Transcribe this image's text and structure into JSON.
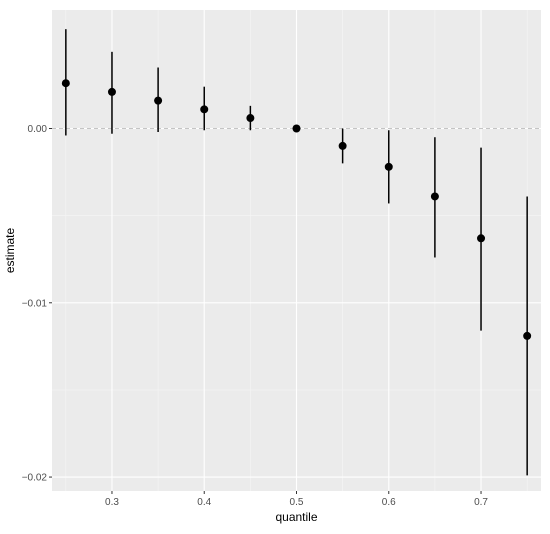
{
  "chart_data": {
    "type": "scatter",
    "subtype": "pointrange",
    "title": "",
    "xlabel": "quantile",
    "ylabel": "estimate",
    "xlim": [
      0.235,
      0.765
    ],
    "ylim": [
      -0.0208,
      0.0068
    ],
    "x_ticks": [
      0.3,
      0.4,
      0.5,
      0.6,
      0.7
    ],
    "x_tick_labels": [
      "0.3",
      "0.4",
      "0.5",
      "0.6",
      "0.7"
    ],
    "y_ticks": [
      -0.02,
      -0.01,
      0.0
    ],
    "y_tick_labels": [
      "−0.02",
      "−0.01",
      "0.00"
    ],
    "grid": true,
    "reference_line": {
      "y": 0,
      "style": "dashed"
    },
    "points": [
      {
        "x": 0.25,
        "y": 0.0026,
        "lower": -0.0004,
        "upper": 0.0057
      },
      {
        "x": 0.3,
        "y": 0.0021,
        "lower": -0.0003,
        "upper": 0.0044
      },
      {
        "x": 0.35,
        "y": 0.0016,
        "lower": -0.0002,
        "upper": 0.0035
      },
      {
        "x": 0.4,
        "y": 0.0011,
        "lower": -0.0001,
        "upper": 0.0024
      },
      {
        "x": 0.45,
        "y": 0.0006,
        "lower": -0.0001,
        "upper": 0.0013
      },
      {
        "x": 0.5,
        "y": 0.0,
        "lower": 0.0,
        "upper": 0.0
      },
      {
        "x": 0.55,
        "y": -0.001,
        "lower": -0.002,
        "upper": 0.0
      },
      {
        "x": 0.6,
        "y": -0.0022,
        "lower": -0.0043,
        "upper": -0.0001
      },
      {
        "x": 0.65,
        "y": -0.0039,
        "lower": -0.0074,
        "upper": -0.0005
      },
      {
        "x": 0.7,
        "y": -0.0063,
        "lower": -0.0116,
        "upper": -0.0011
      },
      {
        "x": 0.75,
        "y": -0.0119,
        "lower": -0.0199,
        "upper": -0.0039
      }
    ]
  },
  "style": {
    "panel_bg": "#ebebeb",
    "grid_major": "#ffffff",
    "grid_minor": "#f5f5f5",
    "point_color": "#000000",
    "ref_line_color": "#c4c4c4"
  }
}
